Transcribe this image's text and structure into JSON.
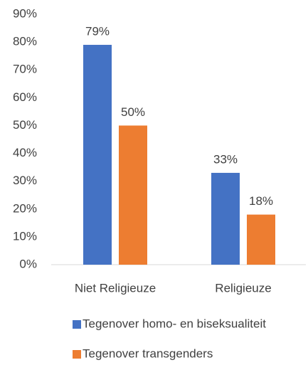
{
  "chart_data": {
    "type": "bar",
    "categories": [
      "Niet Religieuze",
      "Religieuze"
    ],
    "series": [
      {
        "name": "Tegenover homo- en biseksualiteit",
        "color": "#4472c4",
        "values": [
          79,
          33
        ],
        "value_labels": [
          "79%",
          "33%"
        ]
      },
      {
        "name": "Tegenover transgenders",
        "color": "#ed7d31",
        "values": [
          50,
          18
        ],
        "value_labels": [
          "50%",
          "18%"
        ]
      }
    ],
    "ylim": [
      0,
      90
    ],
    "yticks": [
      {
        "value": 0,
        "label": "0%"
      },
      {
        "value": 10,
        "label": "10%"
      },
      {
        "value": 20,
        "label": "20%"
      },
      {
        "value": 30,
        "label": "30%"
      },
      {
        "value": 40,
        "label": "40%"
      },
      {
        "value": 50,
        "label": "50%"
      },
      {
        "value": 60,
        "label": "60%"
      },
      {
        "value": 70,
        "label": "70%"
      },
      {
        "value": 80,
        "label": "80%"
      },
      {
        "value": 90,
        "label": "90%"
      }
    ],
    "grid": false,
    "legend": "bottom"
  }
}
